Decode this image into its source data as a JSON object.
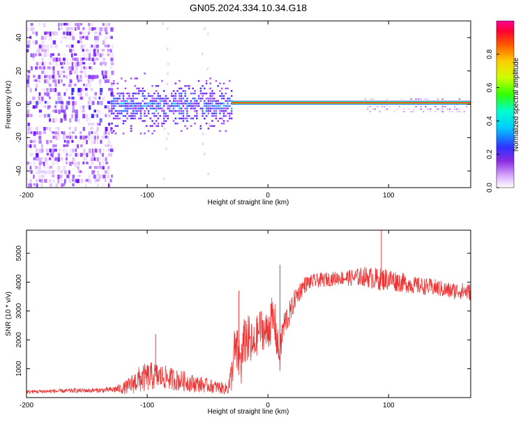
{
  "title": "GN05.2024.334.10.34.G18",
  "chart_data": [
    {
      "type": "heatmap",
      "xlabel": "Height of straight line (km)",
      "ylabel": "Frequency (Hz)",
      "xlim": [
        -200,
        168
      ],
      "ylim": [
        -50,
        50
      ],
      "x_ticks": [
        -200,
        -100,
        0,
        100
      ],
      "y_ticks": [
        -40,
        -20,
        0,
        20,
        40
      ],
      "colorbar": {
        "label": "Normalized spectral amplitude",
        "range": [
          0,
          1
        ],
        "ticks": [
          0.0,
          0.2,
          0.4,
          0.6,
          0.8
        ]
      },
      "features": {
        "scattered_noise_x_range": [
          -200,
          -130
        ],
        "noise_band_x_range": [
          -130,
          -30
        ],
        "noise_band_halfwidth_hz": 8,
        "faint_streaks_x": [
          -85,
          -52
        ],
        "steady_line_x_range": [
          -30,
          168
        ],
        "steady_line_freq_hz": 0.5,
        "weak_sidelobe_x_range": [
          80,
          165
        ]
      }
    },
    {
      "type": "line",
      "xlabel": "Height of straight line (km)",
      "ylabel": "SNR (10 * v/v)",
      "xlim": [
        -200,
        168
      ],
      "ylim": [
        0,
        5800
      ],
      "x_ticks": [
        -200,
        -100,
        0,
        100
      ],
      "y_ticks": [
        1000,
        2000,
        3000,
        4000,
        5000
      ],
      "series": [
        {
          "color": "#ee3333",
          "x": [
            -200,
            -180,
            -160,
            -140,
            -130,
            -120,
            -115,
            -110,
            -105,
            -100,
            -95,
            -90,
            -85,
            -80,
            -75,
            -70,
            -65,
            -60,
            -55,
            -50,
            -45,
            -40,
            -35,
            -32,
            -30,
            -28,
            -25,
            -22,
            -20,
            -18,
            -15,
            -12,
            -10,
            -8,
            -6,
            -4,
            -2,
            0,
            2,
            4,
            6,
            8,
            10,
            12,
            15,
            18,
            20,
            22,
            25,
            30,
            35,
            40,
            50,
            60,
            70,
            80,
            90,
            100,
            110,
            120,
            130,
            140,
            150,
            160,
            168
          ],
          "y": [
            200,
            220,
            240,
            250,
            270,
            320,
            400,
            550,
            650,
            700,
            750,
            720,
            700,
            650,
            600,
            580,
            520,
            480,
            450,
            420,
            380,
            350,
            300,
            450,
            800,
            1600,
            1500,
            1200,
            1800,
            2100,
            1900,
            1700,
            2000,
            2300,
            2400,
            2350,
            2200,
            2400,
            2600,
            2700,
            2500,
            1800,
            1400,
            2300,
            2700,
            2900,
            3100,
            3400,
            3600,
            3900,
            4000,
            4050,
            4100,
            4150,
            4150,
            4200,
            4100,
            4100,
            4000,
            3900,
            3850,
            3800,
            3700,
            3700,
            3650
          ],
          "noise_amplitude": [
            60,
            70,
            80,
            80,
            100,
            200,
            300,
            400,
            500,
            500,
            500,
            450,
            420,
            400,
            380,
            350,
            320,
            300,
            280,
            250,
            230,
            220,
            200,
            400,
            600,
            800,
            900,
            900,
            900,
            900,
            900,
            800,
            700,
            700,
            700,
            700,
            700,
            800,
            800,
            800,
            800,
            700,
            600,
            600,
            500,
            450,
            400,
            350,
            350,
            300,
            250,
            250,
            250,
            250,
            300,
            350,
            400,
            400,
            350,
            300,
            300,
            300,
            300,
            300,
            300
          ],
          "annotations": {
            "max_spike": {
              "x": 94,
              "y": 5800
            },
            "spike_near_minus_93": {
              "x": -93,
              "y": 2200
            },
            "spike_near_minus_24": {
              "x": -24,
              "y": 3700
            },
            "spike_near_10": {
              "x": 10,
              "y": 4600
            }
          }
        }
      ]
    }
  ]
}
